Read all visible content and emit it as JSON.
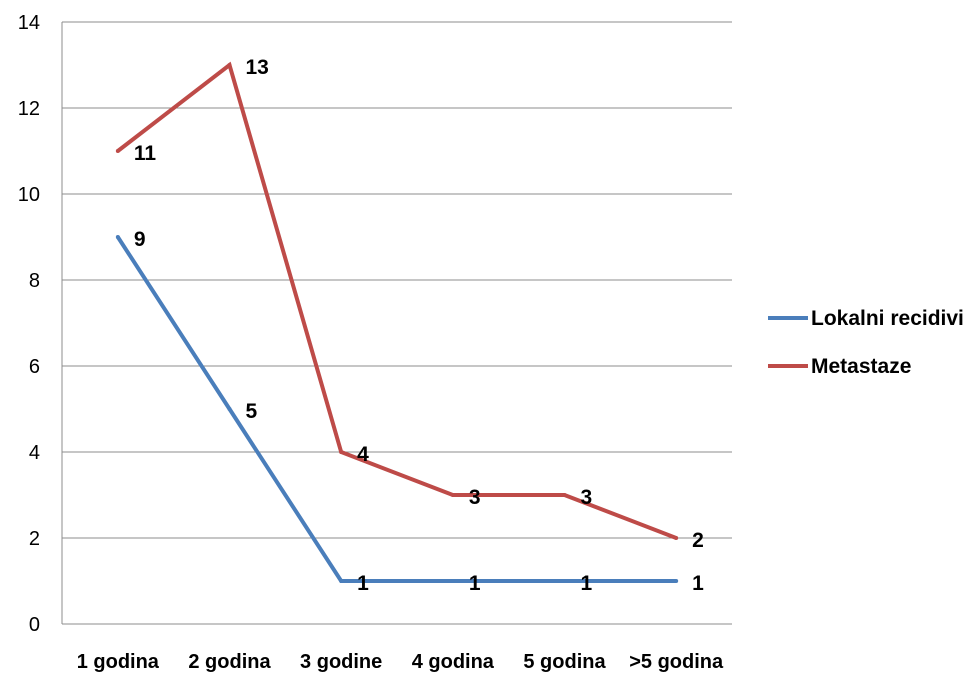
{
  "chart_data": {
    "type": "line",
    "categories": [
      "1 godina",
      "2 godina",
      "3 godine",
      "4 godina",
      "5 godina",
      ">5 godina"
    ],
    "series": [
      {
        "name": "Lokalni recidivi",
        "values": [
          9,
          5,
          1,
          1,
          1,
          1
        ],
        "color": "#4a7ebb"
      },
      {
        "name": "Metastaze",
        "values": [
          11,
          13,
          4,
          3,
          3,
          2
        ],
        "color": "#be4b48"
      }
    ],
    "ylim": [
      0,
      14
    ],
    "yticks": [
      0,
      2,
      4,
      6,
      8,
      10,
      12,
      14
    ],
    "grid": true,
    "legend": "right",
    "data_labels": true
  }
}
